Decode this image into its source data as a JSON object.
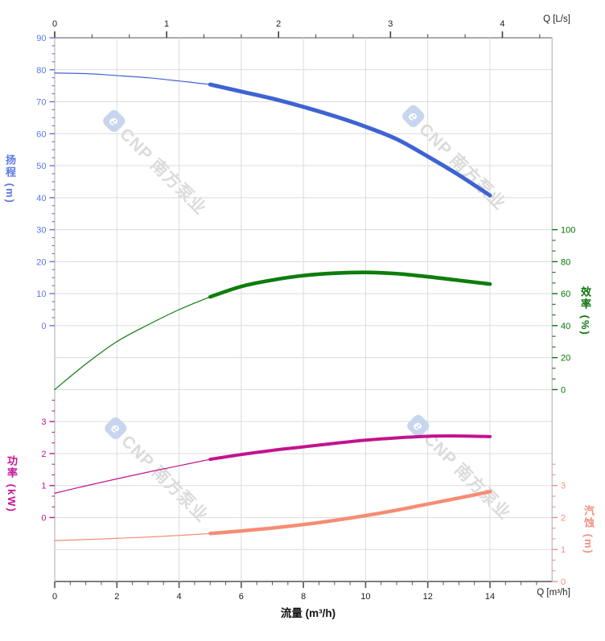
{
  "watermark": {
    "logo_letter": "e",
    "text": "CNP 南方泵业"
  },
  "palette": {
    "grid": "#dcdcdc",
    "border": "#c6c6c6",
    "top_axis_line": "#ababab",
    "bottom_axis_line": "#7d7d7d",
    "x_tick": "#3c3c3c",
    "x_label": "#1c1c1c",
    "watermark_text": "#dbdbdb",
    "watermark_logo": "#c7d6ee"
  },
  "labels": {
    "flow_title": "流量 (m³/h)",
    "q_ls": "Q [L/s]",
    "q_m3h": "Q [m³/h]"
  },
  "chart_data": {
    "type": "line",
    "description": "Pump performance curves: head, efficiency, power and NPSH versus flow",
    "x_axis_bottom": {
      "title": "流量 (m³/h)",
      "unit_label": "Q [m³/h]",
      "range": [
        0,
        16
      ],
      "major_ticks": [
        0,
        2,
        4,
        6,
        8,
        10,
        12,
        14
      ],
      "minor_step": 0.5
    },
    "x_axis_top": {
      "unit_label": "Q [L/s]",
      "range": [
        0,
        4.4444
      ],
      "major_ticks": [
        0,
        1,
        2,
        3,
        4
      ],
      "minor_step": 0.3333
    },
    "y_axes": [
      {
        "id": "head",
        "title": "扬程 (m)",
        "side": "left",
        "color": "#5b79e0",
        "max": 90,
        "min": 0,
        "top_row": 0,
        "bottom_row": 9,
        "major_ticks": [
          90,
          80,
          70,
          60,
          50,
          40,
          30,
          20,
          10,
          0
        ],
        "minor_step": 2.5,
        "overshoot_minors": 0
      },
      {
        "id": "efficiency",
        "title": "效率 (%)",
        "side": "right",
        "color": "#077307",
        "max": 100,
        "min": 0,
        "top_row": 6,
        "bottom_row": 11,
        "major_ticks": [
          100,
          80,
          60,
          40,
          20,
          0
        ],
        "minor_step": 6.6667,
        "overshoot_minors": 0
      },
      {
        "id": "power",
        "title": "功率 (kW)",
        "side": "left",
        "color": "#c4169a",
        "max": 3,
        "min": 0,
        "top_row": 12,
        "bottom_row": 15,
        "major_ticks": [
          3,
          2,
          1,
          0
        ],
        "minor_step": 0.3333,
        "overshoot_minors": 2
      },
      {
        "id": "npsh",
        "title": "汽蚀 (m)",
        "side": "right",
        "color": "#f5907f",
        "max": 3,
        "min": 0,
        "top_row": 14,
        "bottom_row": 17,
        "major_ticks": [
          3,
          2,
          1,
          0
        ],
        "minor_step": 0.3333,
        "overshoot_minors": 2
      }
    ],
    "x": [
      0,
      1,
      2,
      3,
      4,
      5,
      6,
      7,
      8,
      9,
      10,
      11,
      12,
      13,
      14
    ],
    "highlight_range": [
      5,
      14
    ],
    "series": [
      {
        "name": "扬程",
        "axis": "head",
        "color": "#3f63d2",
        "values": [
          79,
          78.8,
          78.2,
          77.5,
          76.5,
          75.4,
          73.2,
          71,
          68.4,
          65.5,
          62.2,
          58.3,
          52.9,
          47.1,
          40.7
        ]
      },
      {
        "name": "效率",
        "axis": "efficiency",
        "color": "#0d7d0d",
        "values": [
          0,
          16,
          30,
          40.5,
          50,
          58,
          64.5,
          68.5,
          71.3,
          72.8,
          73.3,
          72.5,
          70.6,
          68.3,
          66
        ]
      },
      {
        "name": "功率",
        "axis": "power",
        "color": "#c2138e",
        "values": [
          0.76,
          0.99,
          1.21,
          1.42,
          1.62,
          1.82,
          1.97,
          2.1,
          2.21,
          2.32,
          2.42,
          2.49,
          2.54,
          2.55,
          2.53
        ]
      },
      {
        "name": "汽蚀",
        "axis": "npsh",
        "color": "#f68c74",
        "values": [
          1.28,
          1.31,
          1.35,
          1.39,
          1.44,
          1.5,
          1.58,
          1.67,
          1.78,
          1.91,
          2.06,
          2.23,
          2.42,
          2.61,
          2.81
        ]
      }
    ]
  }
}
